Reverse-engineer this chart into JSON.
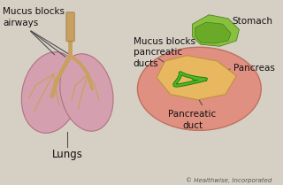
{
  "bg_color": "#d6d0c4",
  "lung_color": "#d4a0b0",
  "lung_edge_color": "#b07080",
  "trachea_color": "#c8a060",
  "labels": {
    "mucus_airways": "Mucus blocks\nairways",
    "mucus_pancreatic": "Mucus blocks\npancreatic\nducts",
    "lungs": "Lungs",
    "stomach": "Stomach",
    "pancreas": "Pancreas",
    "pancreatic_duct": "Pancreatic\nduct",
    "copyright": "© Healthwise, Incorporated"
  },
  "label_fontsize": 7.5,
  "small_fontsize": 5.0
}
